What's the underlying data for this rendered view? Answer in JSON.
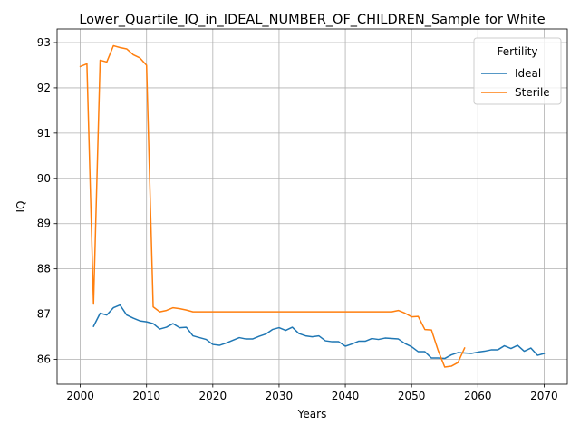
{
  "chart_data": {
    "type": "line",
    "title": "Lower_Quartile_IQ_in_IDEAL_NUMBER_OF_CHILDREN_Sample for White",
    "xlabel": "Years",
    "ylabel": "IQ",
    "xlim": [
      1996.5,
      2073.5
    ],
    "ylim": [
      85.45,
      93.3
    ],
    "xticks": [
      2000,
      2010,
      2020,
      2030,
      2040,
      2050,
      2060,
      2070
    ],
    "yticks": [
      86,
      87,
      88,
      89,
      90,
      91,
      92,
      93
    ],
    "grid": true,
    "legend": {
      "title": "Fertility",
      "placement": "top-right"
    },
    "series": [
      {
        "name": "Ideal",
        "color": "#1f77b4",
        "x": [
          2002,
          2003,
          2004,
          2005,
          2006,
          2007,
          2008,
          2009,
          2010,
          2011,
          2012,
          2013,
          2014,
          2015,
          2016,
          2017,
          2018,
          2019,
          2020,
          2021,
          2022,
          2023,
          2024,
          2025,
          2026,
          2027,
          2028,
          2029,
          2030,
          2031,
          2032,
          2033,
          2034,
          2035,
          2036,
          2037,
          2038,
          2039,
          2040,
          2041,
          2042,
          2043,
          2044,
          2045,
          2046,
          2047,
          2048,
          2049,
          2050,
          2051,
          2052,
          2053,
          2054,
          2055,
          2056,
          2057,
          2058,
          2059,
          2060,
          2061,
          2062,
          2063,
          2064,
          2065,
          2066,
          2067,
          2068,
          2069,
          2070
        ],
        "values": [
          86.73,
          87.02,
          86.98,
          87.14,
          87.2,
          86.98,
          86.91,
          86.85,
          86.83,
          86.79,
          86.67,
          86.71,
          86.79,
          86.7,
          86.71,
          86.52,
          86.48,
          86.44,
          86.33,
          86.31,
          86.36,
          86.42,
          86.48,
          86.45,
          86.45,
          86.51,
          86.56,
          86.66,
          86.7,
          86.64,
          86.71,
          86.57,
          86.52,
          86.5,
          86.52,
          86.41,
          86.39,
          86.39,
          86.29,
          86.34,
          86.4,
          86.4,
          86.46,
          86.44,
          86.47,
          86.46,
          86.45,
          86.35,
          86.28,
          86.17,
          86.17,
          86.03,
          86.03,
          86.02,
          86.1,
          86.15,
          86.14,
          86.13,
          86.16,
          86.18,
          86.21,
          86.21,
          86.3,
          86.24,
          86.31,
          86.18,
          86.25,
          86.09,
          86.13
        ]
      },
      {
        "name": "Sterile",
        "color": "#ff7f0e",
        "x": [
          2000,
          2001,
          2002,
          2003,
          2004,
          2005,
          2006,
          2007,
          2008,
          2009,
          2010,
          2011,
          2012,
          2013,
          2014,
          2015,
          2016,
          2017,
          2018,
          2019,
          2020,
          2021,
          2022,
          2023,
          2024,
          2025,
          2026,
          2027,
          2028,
          2029,
          2030,
          2031,
          2032,
          2033,
          2034,
          2035,
          2036,
          2037,
          2038,
          2039,
          2040,
          2041,
          2042,
          2043,
          2044,
          2045,
          2046,
          2047,
          2048,
          2049,
          2050,
          2051,
          2052,
          2053,
          2054,
          2055,
          2056,
          2057,
          2058
        ],
        "values": [
          92.47,
          92.53,
          87.22,
          92.61,
          92.57,
          92.93,
          92.89,
          92.86,
          92.73,
          92.66,
          92.5,
          87.16,
          87.05,
          87.08,
          87.14,
          87.12,
          87.09,
          87.05,
          87.05,
          87.05,
          87.05,
          87.05,
          87.05,
          87.05,
          87.05,
          87.05,
          87.05,
          87.05,
          87.05,
          87.05,
          87.05,
          87.05,
          87.05,
          87.05,
          87.05,
          87.05,
          87.05,
          87.05,
          87.05,
          87.05,
          87.05,
          87.05,
          87.05,
          87.05,
          87.05,
          87.05,
          87.05,
          87.05,
          87.08,
          87.02,
          86.94,
          86.95,
          86.66,
          86.65,
          86.2,
          85.83,
          85.85,
          85.93,
          86.25
        ]
      }
    ]
  }
}
